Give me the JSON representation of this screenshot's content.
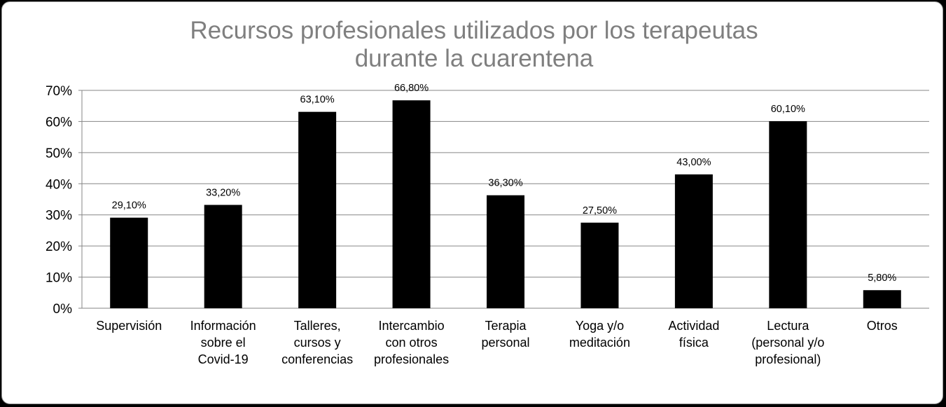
{
  "chart_data": {
    "type": "bar",
    "title": [
      "Recursos profesionales utilizados por los terapeutas",
      "durante la cuarentena"
    ],
    "categories": [
      [
        "Supervisión"
      ],
      [
        "Información",
        "sobre el",
        "Covid-19"
      ],
      [
        "Talleres,",
        "cursos y",
        "conferencias"
      ],
      [
        "Intercambio",
        "con otros",
        "profesionales"
      ],
      [
        "Terapia",
        "personal"
      ],
      [
        "Yoga y/o",
        "meditación"
      ],
      [
        "Actividad",
        "física"
      ],
      [
        "Lectura",
        "(personal y/o",
        "profesional)"
      ],
      [
        "Otros"
      ]
    ],
    "values": [
      29.1,
      33.2,
      63.1,
      66.8,
      36.3,
      27.5,
      43.0,
      60.1,
      5.8
    ],
    "data_labels": [
      "29,10%",
      "33,20%",
      "63,10%",
      "66,80%",
      "36,30%",
      "27,50%",
      "43,00%",
      "60,10%",
      "5,80%"
    ],
    "y_ticks": [
      0,
      10,
      20,
      30,
      40,
      50,
      60,
      70
    ],
    "y_tick_labels": [
      "0%",
      "10%",
      "20%",
      "30%",
      "40%",
      "50%",
      "60%",
      "70%"
    ],
    "ylim": [
      0,
      70
    ],
    "grid": true,
    "legend": "none",
    "colors": {
      "bar": "#000000",
      "grid": "#868686",
      "title": "#7f7f7f",
      "background": "#ffffff"
    }
  }
}
